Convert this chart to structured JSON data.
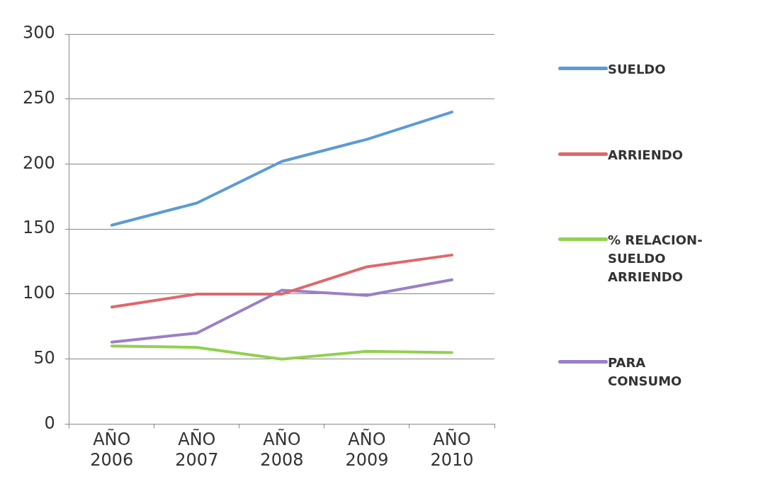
{
  "chart_data": {
    "type": "line",
    "categories": [
      "AÑO 2006",
      "AÑO 2007",
      "AÑO 2008",
      "AÑO 2009",
      "AÑO 2010"
    ],
    "series": [
      {
        "name": "SUELDO",
        "color": "#5b9bd5",
        "values": [
          153,
          170,
          202,
          219,
          240
        ]
      },
      {
        "name": "ARRIENDO",
        "color": "#e0676b",
        "values": [
          90,
          100,
          100,
          121,
          130
        ]
      },
      {
        "name": "% RELACION-SUELDO ARRIENDO",
        "color": "#92d050",
        "values": [
          60,
          59,
          50,
          56,
          55
        ]
      },
      {
        "name": "PARA CONSUMO",
        "color": "#9a7fc6",
        "values": [
          63,
          70,
          103,
          99,
          111
        ]
      }
    ],
    "ylim": [
      0,
      300
    ],
    "yticks": [
      0,
      50,
      100,
      150,
      200,
      250,
      300
    ],
    "grid": "y",
    "legend": "right",
    "marker": "none",
    "line_style": "solid"
  }
}
